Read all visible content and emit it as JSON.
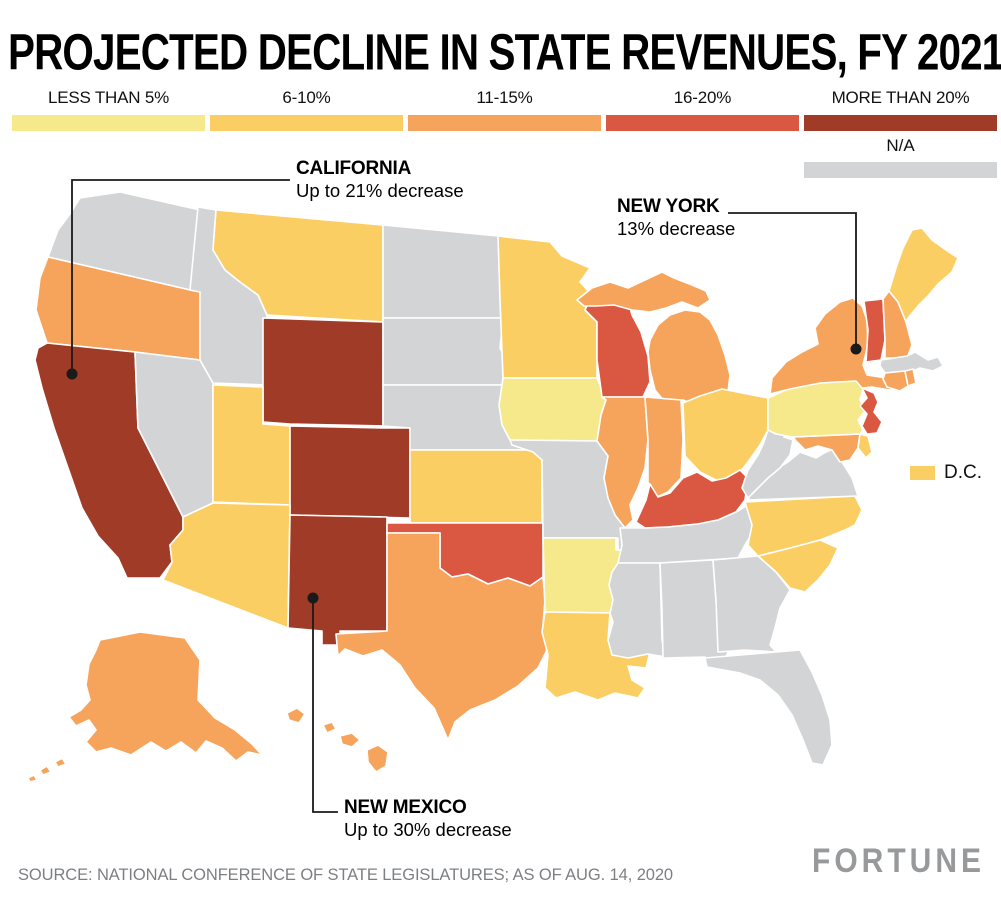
{
  "title": "PROJECTED DECLINE IN STATE REVENUES, FY 2021",
  "legend": {
    "categories": [
      {
        "label": "LESS THAN 5%",
        "color": "#F6E98C"
      },
      {
        "label": "6-10%",
        "color": "#FBCE63"
      },
      {
        "label": "11-15%",
        "color": "#F6A45C"
      },
      {
        "label": "16-20%",
        "color": "#DA5742"
      },
      {
        "label": "MORE THAN 20%",
        "color": "#A03B28"
      }
    ],
    "na": {
      "label": "N/A",
      "color": "#D3D4D5"
    }
  },
  "dc_key": {
    "label": "D.C.",
    "category": "6-10%"
  },
  "callouts": {
    "california": {
      "name": "CALIFORNIA",
      "note": "Up to 21% decrease"
    },
    "new_york": {
      "name": "NEW YORK",
      "note": "13% decrease"
    },
    "new_mexico": {
      "name": "NEW MEXICO",
      "note": "Up to 30% decrease"
    }
  },
  "source": "SOURCE: NATIONAL CONFERENCE OF STATE LEGISLATURES; AS OF AUG. 14, 2020",
  "logo": "FORTUNE",
  "chart_data": {
    "type": "choropleth",
    "title": "Projected decline in state revenues, FY 2021",
    "categories": [
      "LESS THAN 5%",
      "6-10%",
      "11-15%",
      "16-20%",
      "MORE THAN 20%",
      "N/A"
    ],
    "colors": {
      "LESS THAN 5%": "#F6E98C",
      "6-10%": "#FBCE63",
      "11-15%": "#F6A45C",
      "16-20%": "#DA5742",
      "MORE THAN 20%": "#A03B28",
      "N/A": "#D3D4D5"
    },
    "states": {
      "WA": "N/A",
      "OR": "11-15%",
      "CA": "MORE THAN 20%",
      "ID": "N/A",
      "NV": "N/A",
      "MT": "6-10%",
      "WY": "MORE THAN 20%",
      "UT": "6-10%",
      "CO": "MORE THAN 20%",
      "AZ": "6-10%",
      "NM": "MORE THAN 20%",
      "ND": "N/A",
      "SD": "N/A",
      "NE": "N/A",
      "KS": "6-10%",
      "OK": "16-20%",
      "TX": "11-15%",
      "MN": "6-10%",
      "IA": "LESS THAN 5%",
      "MO": "N/A",
      "AR": "LESS THAN 5%",
      "LA": "6-10%",
      "WI": "16-20%",
      "IL": "11-15%",
      "MI": "11-15%",
      "IN": "11-15%",
      "OH": "6-10%",
      "KY": "16-20%",
      "TN": "N/A",
      "MS": "N/A",
      "AL": "N/A",
      "GA": "N/A",
      "FL": "N/A",
      "SC": "6-10%",
      "NC": "6-10%",
      "VA": "N/A",
      "WV": "N/A",
      "MD": "11-15%",
      "DE": "6-10%",
      "PA": "LESS THAN 5%",
      "NJ": "16-20%",
      "NY": "11-15%",
      "CT": "11-15%",
      "RI": "11-15%",
      "MA": "N/A",
      "VT": "16-20%",
      "NH": "11-15%",
      "ME": "6-10%",
      "AK": "11-15%",
      "HI": "11-15%",
      "DC": "6-10%"
    },
    "annotations": [
      {
        "state": "CALIFORNIA",
        "value": "Up to 21% decrease"
      },
      {
        "state": "NEW YORK",
        "value": "13% decrease"
      },
      {
        "state": "NEW MEXICO",
        "value": "Up to 30% decrease"
      }
    ]
  }
}
